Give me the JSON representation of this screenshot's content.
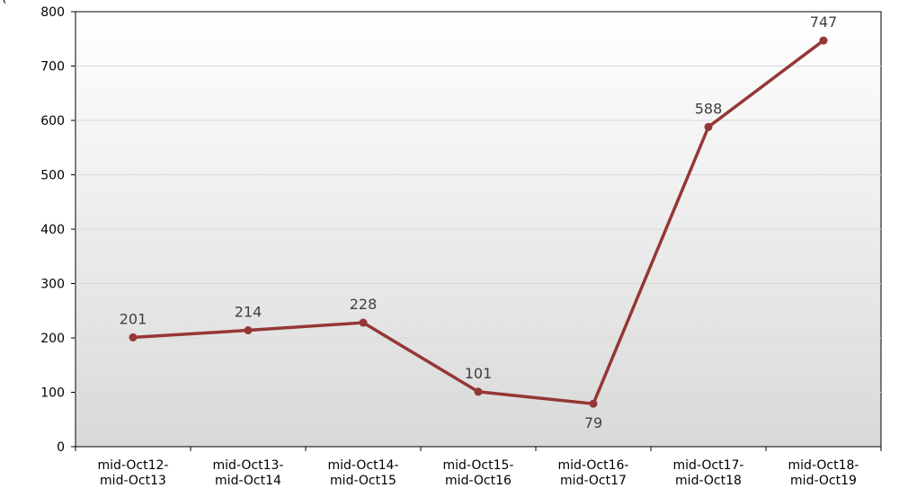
{
  "chart_data": {
    "type": "line",
    "title": "",
    "xlabel": "",
    "ylabel": "",
    "unit_label_fragment": "(",
    "categories": [
      [
        "mid-Oct12-",
        "mid-Oct13"
      ],
      [
        "mid-Oct13-",
        "mid-Oct14"
      ],
      [
        "mid-Oct14-",
        "mid-Oct15"
      ],
      [
        "mid-Oct15-",
        "mid-Oct16"
      ],
      [
        "mid-Oct16-",
        "mid-Oct17"
      ],
      [
        "mid-Oct17-",
        "mid-Oct18"
      ],
      [
        "mid-Oct18-",
        "mid-Oct19"
      ]
    ],
    "series": [
      {
        "values": [
          201,
          214,
          228,
          101,
          79,
          588,
          747
        ],
        "color": "#953735",
        "data_label_position": [
          "above",
          "above",
          "above",
          "above",
          "below",
          "above",
          "above"
        ]
      }
    ],
    "ylim": [
      0,
      800
    ],
    "yticks": [
      0,
      100,
      200,
      300,
      400,
      500,
      600,
      700,
      800
    ],
    "grid": true,
    "legend": "none",
    "plot_background": "gradient white to light gray"
  }
}
